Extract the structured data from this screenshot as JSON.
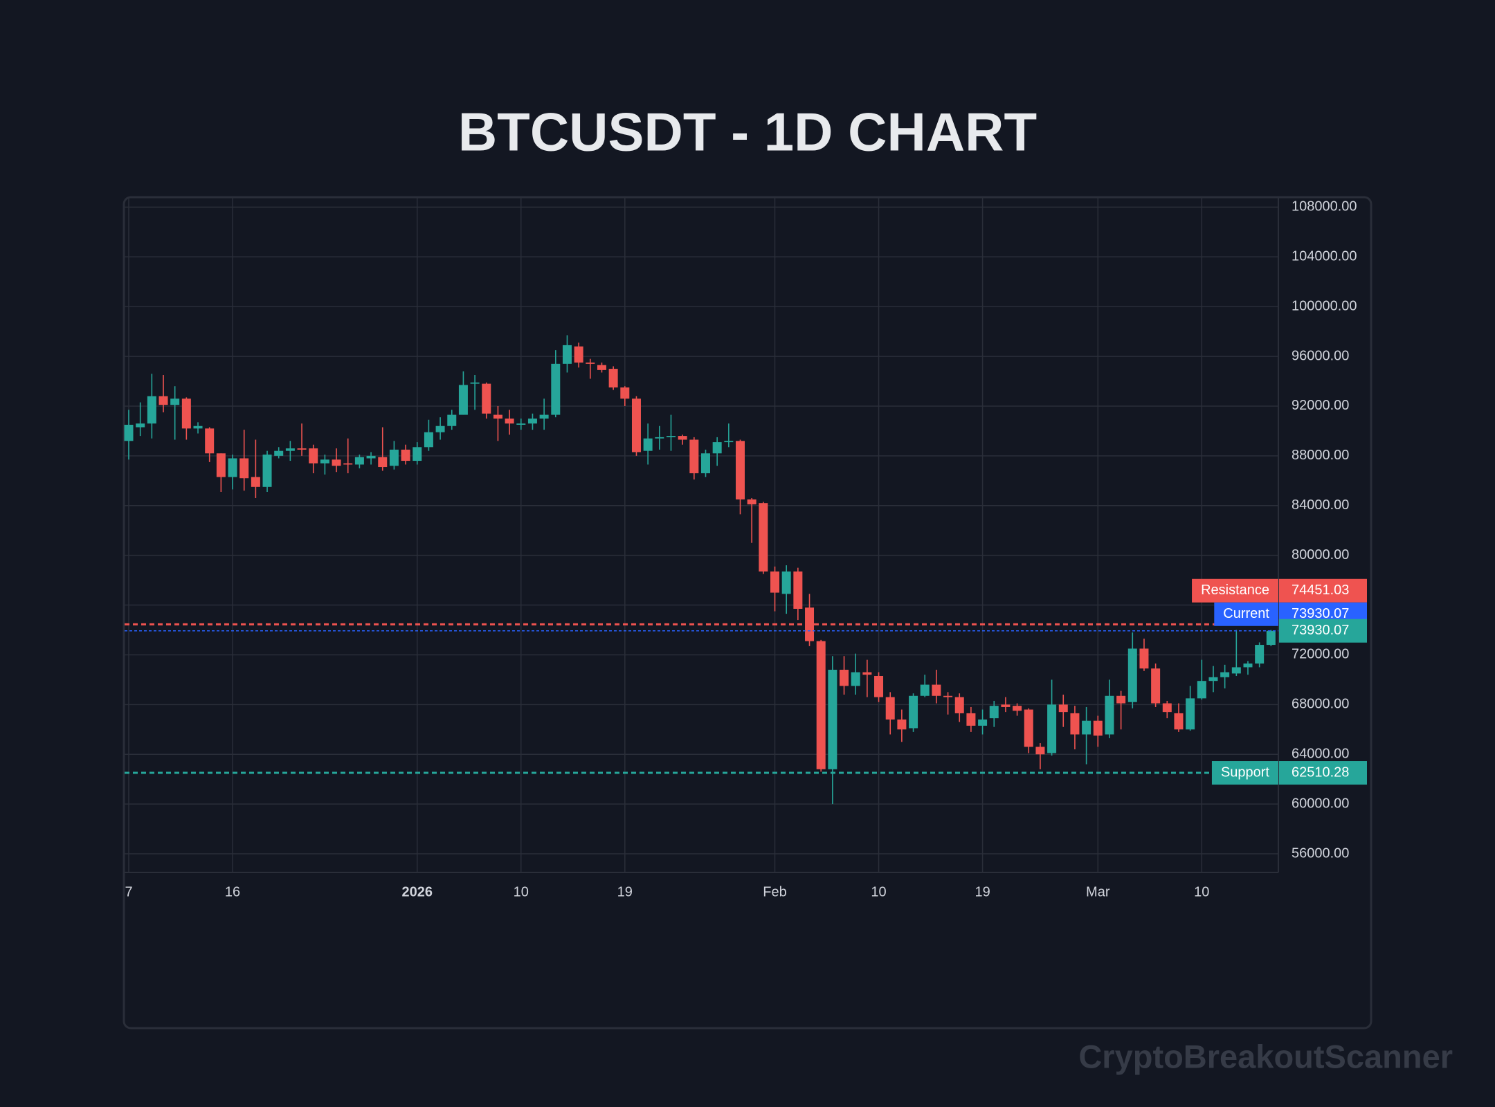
{
  "chart_data": {
    "type": "candlestick",
    "title": "BTCUSDT - 1D CHART",
    "watermark": "CryptoBreakoutScanner",
    "up_color": "#26a69a",
    "down_color": "#ef5350",
    "grid": true,
    "x": [
      "2025-12-07",
      "2025-12-08",
      "2025-12-09",
      "2025-12-10",
      "2025-12-11",
      "2025-12-12",
      "2025-12-13",
      "2025-12-14",
      "2025-12-15",
      "2025-12-16",
      "2025-12-17",
      "2025-12-18",
      "2025-12-19",
      "2025-12-20",
      "2025-12-21",
      "2025-12-22",
      "2025-12-23",
      "2025-12-24",
      "2025-12-25",
      "2025-12-26",
      "2025-12-27",
      "2025-12-28",
      "2025-12-29",
      "2025-12-30",
      "2025-12-31",
      "2026-01-01",
      "2026-01-02",
      "2026-01-03",
      "2026-01-04",
      "2026-01-05",
      "2026-01-06",
      "2026-01-07",
      "2026-01-08",
      "2026-01-09",
      "2026-01-10",
      "2026-01-11",
      "2026-01-12",
      "2026-01-13",
      "2026-01-14",
      "2026-01-15",
      "2026-01-16",
      "2026-01-17",
      "2026-01-18",
      "2026-01-19",
      "2026-01-20",
      "2026-01-21",
      "2026-01-22",
      "2026-01-23",
      "2026-01-24",
      "2026-01-25",
      "2026-01-26",
      "2026-01-27",
      "2026-01-28",
      "2026-01-29",
      "2026-01-30",
      "2026-01-31",
      "2026-02-01",
      "2026-02-02",
      "2026-02-03",
      "2026-02-04",
      "2026-02-05",
      "2026-02-06",
      "2026-02-07",
      "2026-02-08",
      "2026-02-09",
      "2026-02-10",
      "2026-02-11",
      "2026-02-12",
      "2026-02-13",
      "2026-02-14",
      "2026-02-15",
      "2026-02-16",
      "2026-02-17",
      "2026-02-18",
      "2026-02-19",
      "2026-02-20",
      "2026-02-21",
      "2026-02-22",
      "2026-02-23",
      "2026-02-24",
      "2026-02-25",
      "2026-02-26",
      "2026-02-27",
      "2026-02-28",
      "2026-03-01",
      "2026-03-02",
      "2026-03-03",
      "2026-03-04",
      "2026-03-05",
      "2026-03-06",
      "2026-03-07",
      "2026-03-08",
      "2026-03-09",
      "2026-03-10",
      "2026-03-11",
      "2026-03-12",
      "2026-03-13",
      "2026-03-14",
      "2026-03-15",
      "2026-03-16"
    ],
    "open": [
      89200,
      90300,
      90600,
      92800,
      92100,
      92600,
      90200,
      90200,
      88200,
      86300,
      87800,
      86300,
      85500,
      88000,
      88400,
      88600,
      88600,
      87400,
      87700,
      87400,
      87300,
      87800,
      87900,
      87200,
      88500,
      87600,
      88700,
      89900,
      90400,
      91300,
      93800,
      93800,
      91300,
      91000,
      90500,
      90600,
      91000,
      91300,
      95400,
      96800,
      95500,
      95300,
      95000,
      93500,
      92600,
      88400,
      89400,
      89500,
      89600,
      89300,
      86600,
      88200,
      89100,
      89200,
      84500,
      84200,
      78700,
      76900,
      78700,
      75800,
      73100,
      62800,
      70800,
      69500,
      70600,
      70300,
      68600,
      66800,
      66100,
      68700,
      69600,
      68700,
      68600,
      67300,
      66300,
      66900,
      68000,
      67900,
      67600,
      64600,
      64100,
      68000,
      67300,
      65600,
      66700,
      65600,
      68700,
      68200,
      72500,
      70900,
      68100,
      67300,
      66000,
      68500,
      69900,
      70200,
      70500,
      71000,
      71300,
      72800
    ],
    "high": [
      91700,
      92300,
      94600,
      94500,
      93600,
      92700,
      90700,
      90300,
      88200,
      88100,
      90100,
      89300,
      88400,
      88700,
      89200,
      90600,
      88900,
      88100,
      88600,
      89400,
      88100,
      88300,
      90300,
      89200,
      88900,
      89100,
      90900,
      91100,
      91700,
      94800,
      94500,
      93900,
      92000,
      91700,
      91000,
      91400,
      92600,
      96500,
      97700,
      97100,
      95800,
      95500,
      95200,
      93600,
      92800,
      90600,
      90400,
      91300,
      89700,
      89500,
      88500,
      89500,
      90600,
      89300,
      84600,
      84300,
      79100,
      79200,
      79000,
      76900,
      73200,
      71900,
      71900,
      72100,
      71600,
      70600,
      69000,
      67600,
      68900,
      70400,
      70800,
      69000,
      68900,
      67800,
      67600,
      68300,
      68600,
      68100,
      67700,
      64900,
      70000,
      68800,
      67900,
      67800,
      67100,
      70000,
      69100,
      73800,
      73300,
      71300,
      68300,
      68100,
      69500,
      71600,
      71100,
      71200,
      74000,
      71500,
      73000,
      74000
    ],
    "low": [
      87700,
      89600,
      89400,
      91500,
      89300,
      89300,
      89800,
      87500,
      85100,
      85300,
      85200,
      84600,
      85100,
      87800,
      87600,
      88000,
      86600,
      86500,
      86700,
      86600,
      87000,
      87300,
      86800,
      86900,
      87300,
      87300,
      88400,
      89300,
      90100,
      91300,
      91700,
      91000,
      89200,
      89700,
      90100,
      90100,
      90100,
      91100,
      94700,
      95100,
      94200,
      94700,
      93300,
      92000,
      88000,
      87300,
      88500,
      88400,
      88900,
      86100,
      86300,
      87200,
      88700,
      83300,
      81000,
      78500,
      75500,
      75300,
      74800,
      72700,
      62600,
      60000,
      68800,
      68800,
      68600,
      68200,
      65600,
      65000,
      65800,
      68600,
      68100,
      67200,
      66600,
      65800,
      65600,
      66200,
      67400,
      67100,
      64100,
      62800,
      63900,
      66200,
      64400,
      63200,
      64600,
      65300,
      66000,
      67700,
      70700,
      67800,
      66900,
      65800,
      65900,
      68400,
      69000,
      69300,
      70300,
      70400,
      71000,
      72700
    ],
    "close": [
      90500,
      90600,
      92800,
      92100,
      92600,
      90200,
      90400,
      88200,
      86300,
      87800,
      86200,
      85500,
      88100,
      88400,
      88600,
      88500,
      87400,
      87700,
      87200,
      87300,
      87900,
      88000,
      87100,
      88500,
      87600,
      88700,
      89900,
      90400,
      91300,
      93700,
      93900,
      91400,
      91000,
      90600,
      90600,
      91000,
      91300,
      95400,
      96900,
      95500,
      95400,
      94900,
      93500,
      92600,
      88300,
      89400,
      89500,
      89600,
      89300,
      86600,
      88200,
      89100,
      89200,
      84500,
      84100,
      78700,
      77000,
      78700,
      75700,
      73100,
      62800,
      70800,
      69500,
      70600,
      70400,
      68600,
      66800,
      66000,
      68700,
      69600,
      68700,
      68600,
      67300,
      66300,
      66800,
      67900,
      67800,
      67500,
      64600,
      64000,
      68000,
      67400,
      65600,
      66700,
      65500,
      68700,
      68100,
      72500,
      70900,
      68100,
      67400,
      66000,
      68500,
      69900,
      70200,
      70600,
      71000,
      71300,
      72800,
      73930.07
    ],
    "ylim": [
      54500,
      108800
    ],
    "yticks": [
      {
        "value": 56000,
        "label": "56000.00"
      },
      {
        "value": 60000,
        "label": "60000.00"
      },
      {
        "value": 64000,
        "label": "64000.00"
      },
      {
        "value": 68000,
        "label": "68000.00"
      },
      {
        "value": 72000,
        "label": "72000.00"
      },
      {
        "value": 76000,
        "label": ""
      },
      {
        "value": 80000,
        "label": "80000.00"
      },
      {
        "value": 84000,
        "label": "84000.00"
      },
      {
        "value": 88000,
        "label": "88000.00"
      },
      {
        "value": 92000,
        "label": "92000.00"
      },
      {
        "value": 96000,
        "label": "96000.00"
      },
      {
        "value": 100000,
        "label": "100000.00"
      },
      {
        "value": 104000,
        "label": "104000.00"
      },
      {
        "value": 108000,
        "label": "108000.00"
      }
    ],
    "xticks": [
      {
        "value": "2025-12-07",
        "label": "7"
      },
      {
        "value": "2025-12-16",
        "label": "16"
      },
      {
        "value": "2026-01-01",
        "label": "2026"
      },
      {
        "value": "2026-01-10",
        "label": "10"
      },
      {
        "value": "2026-01-19",
        "label": "19"
      },
      {
        "value": "2026-02-01",
        "label": "Feb"
      },
      {
        "value": "2026-02-10",
        "label": "10"
      },
      {
        "value": "2026-02-19",
        "label": "19"
      },
      {
        "value": "2026-03-01",
        "label": "Mar"
      },
      {
        "value": "2026-03-10",
        "label": "10"
      }
    ],
    "levels": [
      {
        "name": "Resistance",
        "value": 74451.03,
        "color": "#ef5350"
      },
      {
        "name": "Current",
        "value": 73930.07,
        "color": "#2962ff"
      },
      {
        "name": "Support",
        "value": 62510.28,
        "color": "#26a69a"
      }
    ]
  }
}
